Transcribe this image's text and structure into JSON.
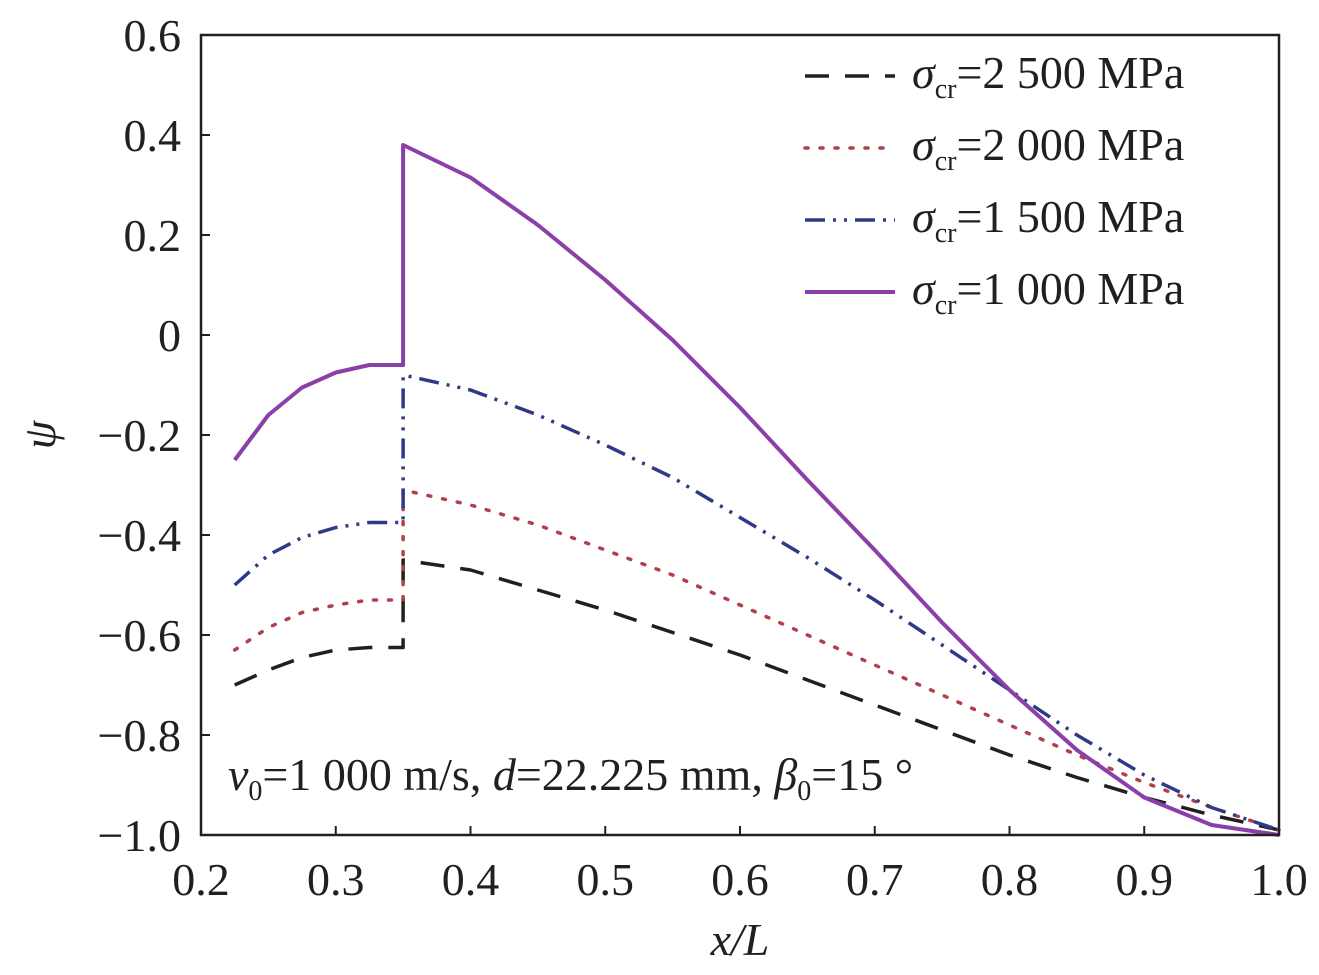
{
  "chart_data": {
    "type": "line",
    "xlabel": "x/L",
    "ylabel": "ψ",
    "xlim": [
      0.2,
      1.0
    ],
    "ylim": [
      -1.0,
      0.6
    ],
    "x_ticks": [
      "0.2",
      "0.3",
      "0.4",
      "0.5",
      "0.6",
      "0.7",
      "0.8",
      "0.9",
      "1.0"
    ],
    "y_ticks": [
      "0.6",
      "0.4",
      "0.2",
      "0",
      "−0.2",
      "−0.4",
      "−0.6",
      "−0.8",
      "−1.0"
    ],
    "grid": false,
    "legend_position": "top-right",
    "annotation": {
      "v_sym": "v",
      "v_sub": "0",
      "v_val": "=1 000 m/s, ",
      "d_sym": "d",
      "d_val": "=22.225 mm, ",
      "b_sym": "β",
      "b_sub": "0",
      "b_val": "=15 °"
    },
    "series": [
      {
        "name": "σcr=2 500 MPa",
        "legend_symbol": "σ",
        "legend_sub": "cr",
        "legend_value": "=2 500 MPa",
        "color": "#231f20",
        "dash": "dashed",
        "x": [
          0.225,
          0.25,
          0.275,
          0.3,
          0.325,
          0.35,
          0.35,
          0.35,
          0.4,
          0.45,
          0.5,
          0.55,
          0.6,
          0.65,
          0.7,
          0.75,
          0.8,
          0.85,
          0.9,
          0.95,
          1.0
        ],
        "y": [
          -0.7,
          -0.67,
          -0.645,
          -0.63,
          -0.625,
          -0.625,
          -0.625,
          -0.45,
          -0.47,
          -0.51,
          -0.55,
          -0.595,
          -0.64,
          -0.69,
          -0.74,
          -0.79,
          -0.84,
          -0.885,
          -0.925,
          -0.96,
          -0.99
        ]
      },
      {
        "name": "σcr=2 000 MPa",
        "legend_symbol": "σ",
        "legend_sub": "cr",
        "legend_value": "=2 000 MPa",
        "color": "#b0404a",
        "dash": "dotted",
        "x": [
          0.225,
          0.25,
          0.275,
          0.3,
          0.325,
          0.35,
          0.35,
          0.35,
          0.4,
          0.45,
          0.5,
          0.55,
          0.6,
          0.65,
          0.7,
          0.75,
          0.8,
          0.85,
          0.9,
          0.95,
          1.0
        ],
        "y": [
          -0.63,
          -0.585,
          -0.555,
          -0.54,
          -0.53,
          -0.53,
          -0.53,
          -0.31,
          -0.34,
          -0.38,
          -0.43,
          -0.48,
          -0.54,
          -0.6,
          -0.66,
          -0.72,
          -0.78,
          -0.84,
          -0.895,
          -0.945,
          -0.99
        ]
      },
      {
        "name": "σcr=1 500 MPa",
        "legend_symbol": "σ",
        "legend_sub": "cr",
        "legend_value": "=1 500 MPa",
        "color": "#2e3a87",
        "dash": "dashdotdot",
        "x": [
          0.225,
          0.25,
          0.275,
          0.3,
          0.325,
          0.35,
          0.35,
          0.35,
          0.4,
          0.45,
          0.5,
          0.55,
          0.6,
          0.65,
          0.7,
          0.75,
          0.8,
          0.85,
          0.9,
          0.95,
          1.0
        ],
        "y": [
          -0.5,
          -0.44,
          -0.405,
          -0.385,
          -0.375,
          -0.375,
          -0.375,
          -0.08,
          -0.11,
          -0.16,
          -0.22,
          -0.285,
          -0.365,
          -0.445,
          -0.53,
          -0.62,
          -0.71,
          -0.8,
          -0.88,
          -0.945,
          -0.99
        ]
      },
      {
        "name": "σcr=1 000 MPa",
        "legend_symbol": "σ",
        "legend_sub": "cr",
        "legend_value": "=1 000 MPa",
        "color": "#8b3fa8",
        "dash": "solid",
        "x": [
          0.225,
          0.25,
          0.275,
          0.3,
          0.325,
          0.345,
          0.35,
          0.35,
          0.4,
          0.45,
          0.5,
          0.55,
          0.6,
          0.65,
          0.7,
          0.75,
          0.8,
          0.85,
          0.9,
          0.95,
          1.0
        ],
        "y": [
          -0.25,
          -0.16,
          -0.105,
          -0.075,
          -0.06,
          -0.06,
          -0.06,
          0.38,
          0.315,
          0.22,
          0.11,
          -0.01,
          -0.145,
          -0.29,
          -0.43,
          -0.575,
          -0.71,
          -0.83,
          -0.925,
          -0.98,
          -1.0
        ]
      }
    ]
  }
}
